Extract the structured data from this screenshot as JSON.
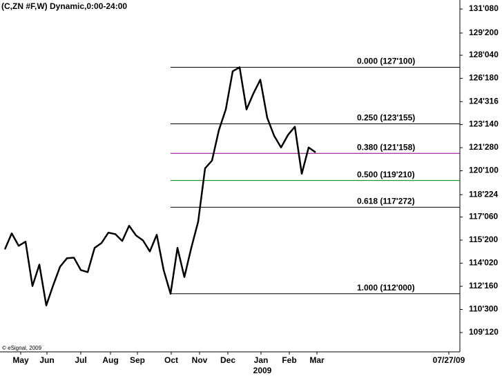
{
  "chart_data": {
    "type": "line",
    "title": "(C,ZN #F,W) Dynamic,0:00-24:00",
    "credit": "© eSignal, 2009",
    "year_label": "2009",
    "x": [
      0,
      1,
      2,
      3,
      4,
      5,
      6,
      7,
      8,
      9,
      10,
      11,
      12,
      13,
      14,
      15,
      16,
      17,
      18,
      19,
      20,
      21,
      22,
      23,
      24,
      25,
      26,
      27,
      28,
      29,
      30,
      31,
      32,
      33,
      34,
      35,
      36,
      37,
      38,
      39,
      40,
      41,
      42,
      43,
      44,
      45
    ],
    "series": [
      {
        "name": "ZN #F",
        "color": "#000000",
        "values": [
          115.0,
          116.08,
          115.24,
          115.52,
          112.52,
          113.97,
          111.21,
          112.57,
          113.83,
          114.4,
          114.44,
          113.6,
          113.46,
          115.1,
          115.43,
          116.13,
          116.03,
          115.57,
          116.6,
          115.94,
          115.61,
          114.86,
          115.99,
          113.6,
          112.0,
          115.1,
          113.13,
          115.1,
          116.88,
          120.48,
          121.0,
          123.06,
          124.46,
          127.04,
          127.3125,
          124.46,
          125.54,
          126.47,
          123.9,
          122.68,
          121.89,
          122.73,
          123.29,
          120.11,
          121.89,
          121.56
        ]
      }
    ],
    "xlim": [
      -0.7,
      65.9
    ],
    "xticks": [
      {
        "value": 2.3,
        "label": "May"
      },
      {
        "value": 6.1,
        "label": "Jun"
      },
      {
        "value": 11,
        "label": "Jul"
      },
      {
        "value": 15.3,
        "label": "Aug"
      },
      {
        "value": 19.2,
        "label": "Sep"
      },
      {
        "value": 24.1,
        "label": "Oct"
      },
      {
        "value": 28.2,
        "label": "Nov"
      },
      {
        "value": 32.3,
        "label": "Dec"
      },
      {
        "value": 37.1,
        "label": "Jan"
      },
      {
        "value": 41.2,
        "label": "Feb"
      },
      {
        "value": 45.2,
        "label": "Mar"
      },
      {
        "value": 64.3,
        "label": "07/27/09"
      }
    ],
    "ylim": [
      108.07,
      131.86
    ],
    "yticks": [
      {
        "value": 131.25,
        "label": "131'080"
      },
      {
        "value": 129.625,
        "label": "129'200"
      },
      {
        "value": 128.125,
        "label": "128'040"
      },
      {
        "value": 126.5625,
        "label": "126'180"
      },
      {
        "value": 124.9875,
        "label": "124'316"
      },
      {
        "value": 123.4375,
        "label": "123'140"
      },
      {
        "value": 121.875,
        "label": "121'280"
      },
      {
        "value": 120.3125,
        "label": "120'100"
      },
      {
        "value": 118.7,
        "label": "118'224"
      },
      {
        "value": 117.1875,
        "label": "117'060"
      },
      {
        "value": 115.625,
        "label": "115'200"
      },
      {
        "value": 114.0625,
        "label": "114'020"
      },
      {
        "value": 112.5,
        "label": "112'160"
      },
      {
        "value": 110.9375,
        "label": "110'300"
      },
      {
        "value": 109.375,
        "label": "109'120"
      }
    ],
    "levels": [
      {
        "value": 127.3125,
        "label": "0.000 (127'100)",
        "color": "#000000",
        "text_color": "#000000"
      },
      {
        "value": 123.484,
        "label": "0.250 (123'155)",
        "color": "#000000",
        "text_color": "#000080"
      },
      {
        "value": 121.49,
        "label": "0.380 (121'158)",
        "color": "#800080",
        "text_color": "#800080"
      },
      {
        "value": 119.656,
        "label": "0.500 (119'210)",
        "color": "#008000",
        "text_color": "#008000"
      },
      {
        "value": 117.85,
        "label": "0.618 (117'272)",
        "color": "#000000",
        "text_color": "#000080"
      },
      {
        "value": 112.0,
        "label": "1.000 (112'000)",
        "color": "#000000",
        "text_color": "#000000"
      }
    ]
  }
}
